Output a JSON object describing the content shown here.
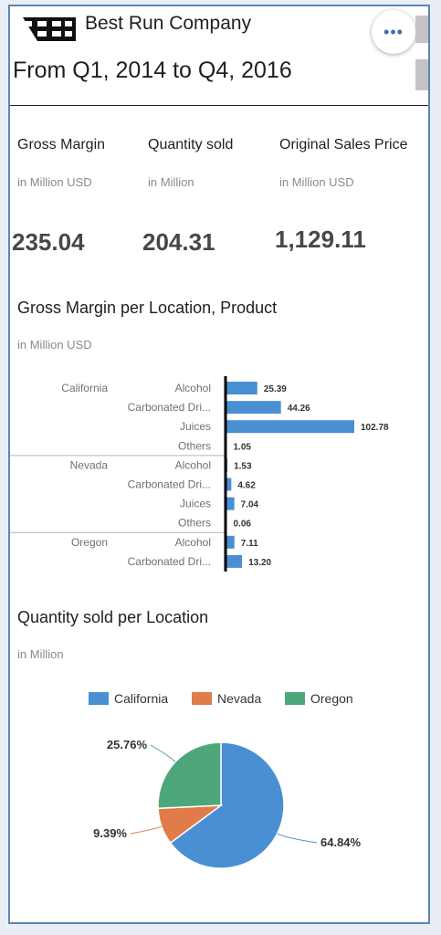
{
  "header": {
    "company": "Best Run Company",
    "period": "From Q1, 2014 to Q4, 2016",
    "more_icon": "more-horizontal-icon"
  },
  "kpis": [
    {
      "title": "Gross Margin",
      "unit": "in Million USD",
      "value": "235.04"
    },
    {
      "title": "Quantity sold",
      "unit": "in Million",
      "value": "204.31"
    },
    {
      "title": "Original Sales Price",
      "unit": "in Million USD",
      "value": "1,129.11"
    }
  ],
  "bar_section": {
    "title": "Gross Margin per Location, Product",
    "unit": "in Million USD"
  },
  "pie_section": {
    "title": "Quantity sold per Location",
    "unit": "in Million"
  },
  "colors": {
    "bar": "#4a8fd4",
    "california": "#4a8fd4",
    "nevada": "#e07b4a",
    "oregon": "#4ea77a"
  },
  "chart_data": [
    {
      "type": "bar",
      "orientation": "horizontal",
      "title": "Gross Margin per Location, Product",
      "subtitle": "in Million USD",
      "groups": [
        {
          "location": "California",
          "products": [
            "Alcohol",
            "Carbonated Dri...",
            "Juices",
            "Others"
          ],
          "values": [
            25.39,
            44.26,
            102.78,
            1.05
          ]
        },
        {
          "location": "Nevada",
          "products": [
            "Alcohol",
            "Carbonated Dri...",
            "Juices",
            "Others"
          ],
          "values": [
            1.53,
            4.62,
            7.04,
            0.06
          ]
        },
        {
          "location": "Oregon",
          "products": [
            "Alcohol",
            "Carbonated Dri..."
          ],
          "values": [
            7.11,
            13.2
          ]
        }
      ],
      "labels": [
        "25.39",
        "44.26",
        "102.78",
        "1.05",
        "1.53",
        "4.62",
        "7.04",
        "0.06",
        "7.11",
        "13.20"
      ],
      "xlim": [
        0,
        102.78
      ]
    },
    {
      "type": "pie",
      "title": "Quantity sold per Location",
      "subtitle": "in Million",
      "legend": "top",
      "categories": [
        "California",
        "Nevada",
        "Oregon"
      ],
      "values": [
        64.84,
        9.39,
        25.76
      ],
      "labels": [
        "64.84%",
        "9.39%",
        "25.76%"
      ]
    }
  ]
}
